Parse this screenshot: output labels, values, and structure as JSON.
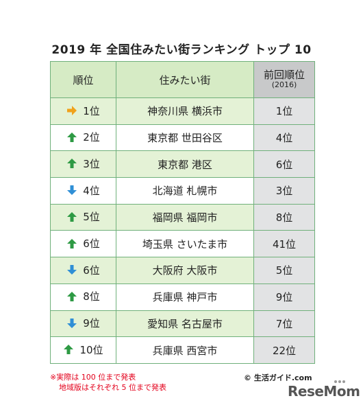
{
  "title": "2019 年 全国住みたい街ランキング トップ 10",
  "headers": {
    "rank": "順位",
    "city": "住みたい街",
    "prev": "前回順位",
    "prev_year": "(2016)"
  },
  "colors": {
    "up": "#2e9a44",
    "down": "#2f8fd6",
    "same": "#f0a21c",
    "header_green": "#d6ebc5",
    "header_gray": "#c8c9ca",
    "row_green": "#e4f2d6",
    "prev_gray": "#e2e3e4",
    "border": "#6fb07a",
    "note_red": "#e3001b"
  },
  "rows": [
    {
      "trend": "same",
      "icon": "arrow-right-icon",
      "rank": "1位",
      "city": "神奈川県 横浜市",
      "prev": "1位"
    },
    {
      "trend": "up",
      "icon": "arrow-up-icon",
      "rank": "2位",
      "city": "東京都 世田谷区",
      "prev": "4位"
    },
    {
      "trend": "up",
      "icon": "arrow-up-icon",
      "rank": "3位",
      "city": "東京都 港区",
      "prev": "6位"
    },
    {
      "trend": "down",
      "icon": "arrow-down-icon",
      "rank": "4位",
      "city": "北海道 札幌市",
      "prev": "3位"
    },
    {
      "trend": "up",
      "icon": "arrow-up-icon",
      "rank": "5位",
      "city": "福岡県 福岡市",
      "prev": "8位"
    },
    {
      "trend": "up",
      "icon": "arrow-up-icon",
      "rank": "6位",
      "city": "埼玉県 さいたま市",
      "prev": "41位"
    },
    {
      "trend": "down",
      "icon": "arrow-down-icon",
      "rank": "6位",
      "city": "大阪府 大阪市",
      "prev": "5位"
    },
    {
      "trend": "up",
      "icon": "arrow-up-icon",
      "rank": "8位",
      "city": "兵庫県 神戸市",
      "prev": "9位"
    },
    {
      "trend": "down",
      "icon": "arrow-down-icon",
      "rank": "9位",
      "city": "愛知県 名古屋市",
      "prev": "7位"
    },
    {
      "trend": "up",
      "icon": "arrow-up-icon",
      "rank": "10位",
      "city": "兵庫県 西宮市",
      "prev": "22位"
    }
  ],
  "notes": {
    "line1": "※実際は 100 位まで発表",
    "line2": "地域版はそれぞれ 5 位まで発表"
  },
  "credit": "© 生活ガイド.com",
  "logo": "ReseMom"
}
